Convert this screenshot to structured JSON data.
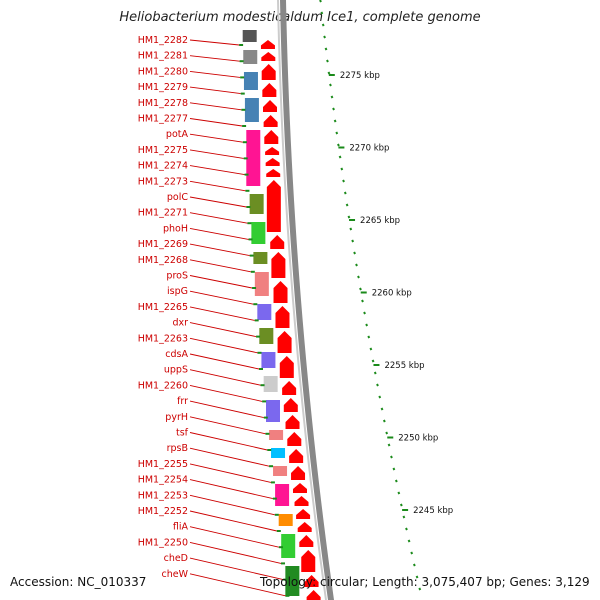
{
  "title": "Heliobacterium modesticaldum Ice1, complete genome",
  "accession": "Accession: NC_010337",
  "topology": "Topology: circular; Length: 3,075,407 bp; Genes: 3,129",
  "colors": {
    "label": "#cc0000",
    "gene": "#ff0000",
    "tick": "#1a8a1a",
    "backbone": "#888888"
  },
  "gene_labels": [
    "HM1_2282",
    "HM1_2281",
    "HM1_2280",
    "HM1_2279",
    "HM1_2278",
    "HM1_2277",
    "potA",
    "HM1_2275",
    "HM1_2274",
    "HM1_2273",
    "polC",
    "HM1_2271",
    "phoH",
    "HM1_2269",
    "HM1_2268",
    "proS",
    "ispG",
    "HM1_2265",
    "dxr",
    "HM1_2263",
    "cdsA",
    "uppS",
    "HM1_2260",
    "frr",
    "pyrH",
    "tsf",
    "rpsB",
    "HM1_2255",
    "HM1_2254",
    "HM1_2253",
    "HM1_2252",
    "fliA",
    "HM1_2250",
    "cheD",
    "cheW"
  ],
  "kbp_labels": [
    "2275 kbp",
    "2270 kbp",
    "2265 kbp",
    "2260 kbp",
    "2255 kbp",
    "2250 kbp",
    "2245 kbp"
  ]
}
